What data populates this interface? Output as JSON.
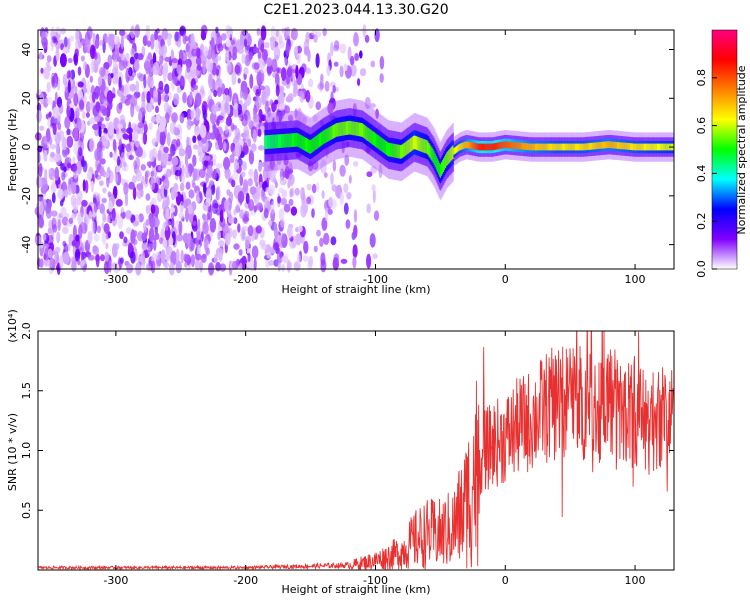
{
  "title": "C2E1.2023.044.13.30.G20",
  "chart_data": [
    {
      "type": "heatmap",
      "xlabel": "Height of straight line (km)",
      "ylabel": "Frequency (Hz)",
      "xlim": [
        -360,
        130
      ],
      "ylim": [
        -50,
        48
      ],
      "xticks": [
        -300,
        -200,
        -100,
        0,
        100
      ],
      "yticks": [
        -40,
        -20,
        0,
        20,
        40
      ],
      "colorbar": {
        "label": "Normalized spectral amplitude",
        "range": [
          0,
          1
        ],
        "ticks": [
          0.0,
          0.2,
          0.4,
          0.6,
          0.8
        ],
        "colormap": [
          "#ffffff",
          "#8000ff",
          "#0000ff",
          "#00ffff",
          "#00ff00",
          "#ffff00",
          "#ff8000",
          "#ff0000",
          "#ff0080"
        ]
      },
      "ridge": {
        "x": [
          -185,
          -160,
          -150,
          -140,
          -130,
          -120,
          -110,
          -100,
          -90,
          -80,
          -70,
          -60,
          -55,
          -50,
          -45,
          -40,
          -35,
          -30,
          -20,
          -10,
          0,
          20,
          40,
          60,
          80,
          100,
          130
        ],
        "y": [
          2,
          3,
          0,
          4,
          7,
          8,
          7,
          3,
          -1,
          -2,
          2,
          0,
          -4,
          -10,
          -5,
          -2,
          0,
          1,
          0,
          0,
          1,
          0,
          0,
          0,
          1,
          0,
          0
        ],
        "amplitude": [
          0.45,
          0.5,
          0.5,
          0.5,
          0.55,
          0.55,
          0.55,
          0.5,
          0.5,
          0.55,
          0.6,
          0.55,
          0.5,
          0.5,
          0.55,
          0.6,
          0.65,
          0.7,
          0.85,
          0.85,
          0.8,
          0.7,
          0.65,
          0.65,
          0.7,
          0.65,
          0.6
        ]
      },
      "noise_region_x": [
        -360,
        -95
      ]
    },
    {
      "type": "line",
      "xlabel": "Height of straight line (km)",
      "ylabel": "SNR (10 * v/v)",
      "yscale_label": "(x10⁴)",
      "xlim": [
        -360,
        130
      ],
      "ylim": [
        0,
        2.0
      ],
      "xticks": [
        -300,
        -200,
        -100,
        0,
        100
      ],
      "yticks": [
        0.5,
        1.0,
        1.5,
        2.0
      ],
      "ytick_labels": [
        "0.5",
        "1.0",
        "1.5",
        "2.0"
      ],
      "color": "#e83030",
      "envelope": {
        "x": [
          -360,
          -200,
          -120,
          -100,
          -80,
          -70,
          -60,
          -50,
          -40,
          -30,
          -25,
          -20,
          -15,
          -10,
          0,
          10,
          20,
          30,
          40,
          50,
          60,
          70,
          80,
          90,
          100,
          110,
          120,
          130
        ],
        "y": [
          0.02,
          0.02,
          0.04,
          0.08,
          0.15,
          0.25,
          0.3,
          0.3,
          0.35,
          0.55,
          0.75,
          0.95,
          1.0,
          1.05,
          1.1,
          1.2,
          1.25,
          1.35,
          1.4,
          1.45,
          1.4,
          1.35,
          1.45,
          1.3,
          1.35,
          1.2,
          1.3,
          1.3
        ]
      }
    }
  ]
}
